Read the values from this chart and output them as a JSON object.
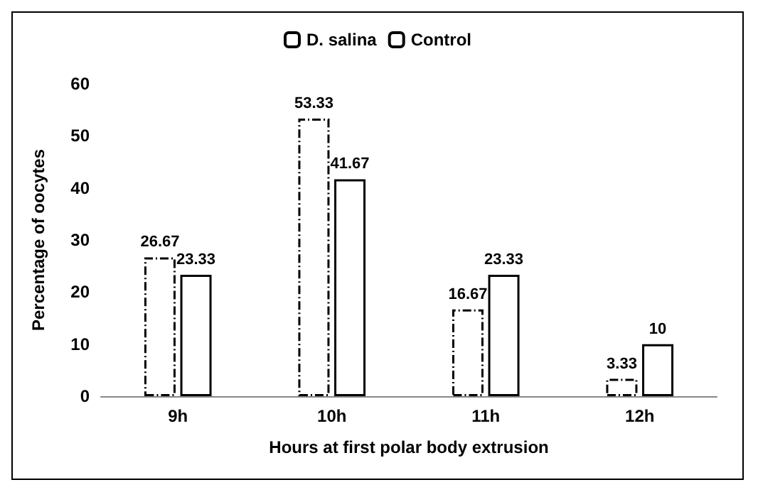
{
  "chart_data": {
    "type": "bar",
    "xlabel": "Hours at first polar body extrusion",
    "ylabel": "Percentage of oocytes",
    "categories": [
      "9h",
      "10h",
      "11h",
      "12h"
    ],
    "series": [
      {
        "name": "D. salina",
        "color": "#000000",
        "line_style": "dashed",
        "values": [
          26.67,
          53.33,
          16.67,
          3.33
        ]
      },
      {
        "name": "Control",
        "color": "#000000",
        "line_style": "solid",
        "values": [
          23.33,
          41.67,
          23.33,
          10
        ]
      }
    ],
    "ylim": [
      0,
      60
    ],
    "yticks": [
      0,
      10,
      20,
      30,
      40,
      50,
      60
    ],
    "grid": false,
    "legend": "top",
    "data_labels": true
  }
}
